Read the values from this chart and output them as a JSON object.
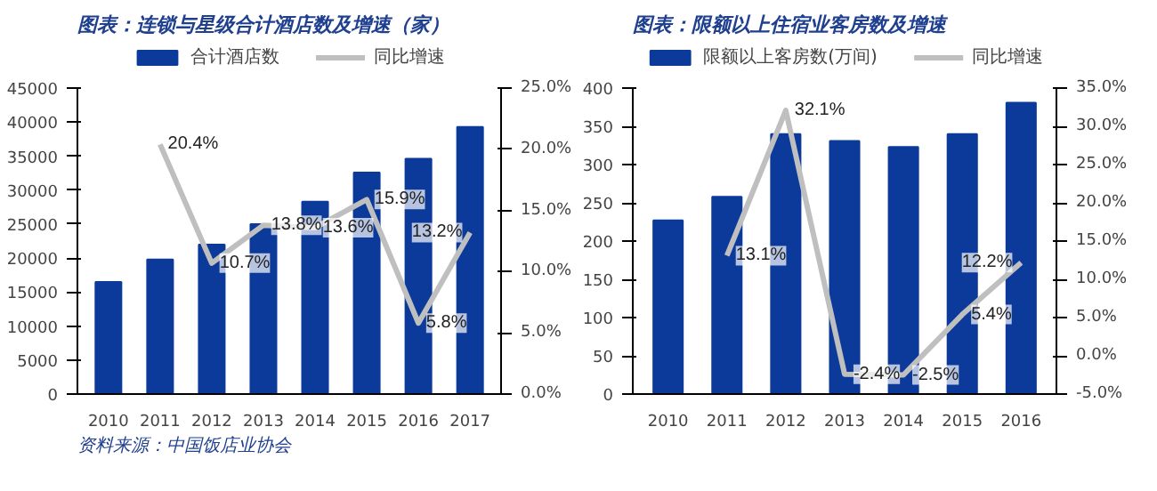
{
  "chart_data": [
    {
      "type": "bar",
      "title": "图表：连锁与星级合计酒店数及增速（家）",
      "categories": [
        "2010",
        "2011",
        "2012",
        "2013",
        "2014",
        "2015",
        "2016",
        "2017"
      ],
      "series": [
        {
          "name": "合计酒店数",
          "color": "#0b3a9a",
          "values": [
            16500,
            19800,
            22000,
            25000,
            28300,
            32600,
            34600,
            39300
          ]
        },
        {
          "name": "同比增速",
          "type": "line",
          "axis": "y2",
          "color": "#bfbfbf",
          "values": [
            null,
            20.4,
            10.7,
            13.8,
            13.6,
            15.9,
            5.8,
            13.2
          ],
          "value_labels": [
            null,
            "20.4%",
            "10.7%",
            "13.8%",
            "13.6%",
            "15.9%",
            "5.8%",
            "13.2%"
          ]
        }
      ],
      "ylim": [
        0,
        45000
      ],
      "yticks": [
        0,
        5000,
        10000,
        15000,
        20000,
        25000,
        30000,
        35000,
        40000,
        45000
      ],
      "y2lim": [
        0,
        25
      ],
      "y2ticks": [
        {
          "value": 0,
          "label": "0.0%"
        },
        {
          "value": 5,
          "label": "5.0%"
        },
        {
          "value": 10,
          "label": "10.0%"
        },
        {
          "value": 15,
          "label": "15.0%"
        },
        {
          "value": 20,
          "label": "20.0%"
        },
        {
          "value": 25,
          "label": "25.0%"
        }
      ],
      "grid": false,
      "legend": "top",
      "annotations": [
        "资料来源：中国饭店业协会"
      ]
    },
    {
      "type": "bar",
      "title": "图表：限额以上住宿业客房数及增速",
      "categories": [
        "2010",
        "2011",
        "2012",
        "2013",
        "2014",
        "2015",
        "2016"
      ],
      "series": [
        {
          "name": "限额以上客房数(万间)",
          "color": "#0b3a9a",
          "values": [
            227,
            258,
            340,
            331,
            323,
            340,
            381
          ]
        },
        {
          "name": "同比增速",
          "type": "line",
          "axis": "y2",
          "color": "#bfbfbf",
          "values": [
            null,
            13.1,
            32.1,
            -2.4,
            -2.5,
            5.4,
            12.2
          ],
          "value_labels": [
            null,
            "13.1%",
            "32.1%",
            "-2.4%",
            "-2.5%",
            "5.4%",
            "12.2%"
          ]
        }
      ],
      "ylim": [
        0,
        400
      ],
      "yticks": [
        0,
        50,
        100,
        150,
        200,
        250,
        300,
        350,
        400
      ],
      "y2lim": [
        -5,
        35
      ],
      "y2ticks": [
        {
          "value": -5,
          "label": "-5.0%"
        },
        {
          "value": 0,
          "label": "0.0%"
        },
        {
          "value": 5,
          "label": "5.0%"
        },
        {
          "value": 10,
          "label": "10.0%"
        },
        {
          "value": 15,
          "label": "15.0%"
        },
        {
          "value": 20,
          "label": "20.0%"
        },
        {
          "value": 25,
          "label": "25.0%"
        },
        {
          "value": 30,
          "label": "30.0%"
        },
        {
          "value": 35,
          "label": "35.0%"
        }
      ],
      "grid": false,
      "legend": "top"
    }
  ]
}
